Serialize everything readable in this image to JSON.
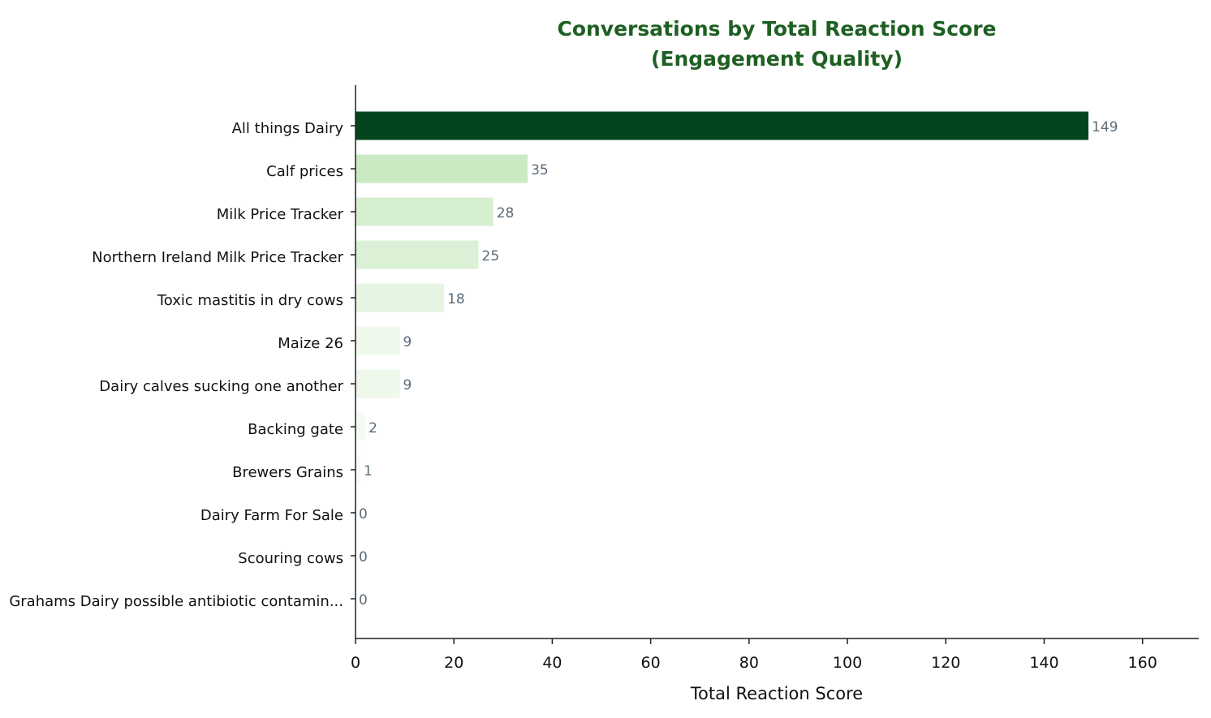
{
  "chart_data": {
    "type": "bar",
    "orientation": "horizontal",
    "title": "Conversations by Total Reaction Score\n(Engagement Quality)",
    "xlabel": "Total Reaction Score",
    "ylabel": "",
    "xlim": [
      0,
      171
    ],
    "xticks": [
      0,
      20,
      40,
      60,
      80,
      100,
      120,
      140,
      160
    ],
    "grid": false,
    "categories": [
      "All things Dairy",
      "Calf prices",
      "Milk Price Tracker",
      "Northern Ireland Milk Price Tracker",
      "Toxic mastitis in dry cows",
      "Maize 26",
      "Dairy calves sucking one another",
      "Backing gate",
      "Brewers Grains",
      "Dairy Farm For Sale",
      "Scouring cows",
      "Grahams Dairy possible antibiotic contamin..."
    ],
    "values": [
      149,
      35,
      28,
      25,
      18,
      9,
      9,
      2,
      1,
      0,
      0,
      0
    ],
    "colormap": "Greens",
    "colors": {
      "title": "#1e5f22",
      "value_labels": "#5b6b78",
      "max_bar": "#03461e",
      "min_bar": "#f7fcf5"
    }
  }
}
